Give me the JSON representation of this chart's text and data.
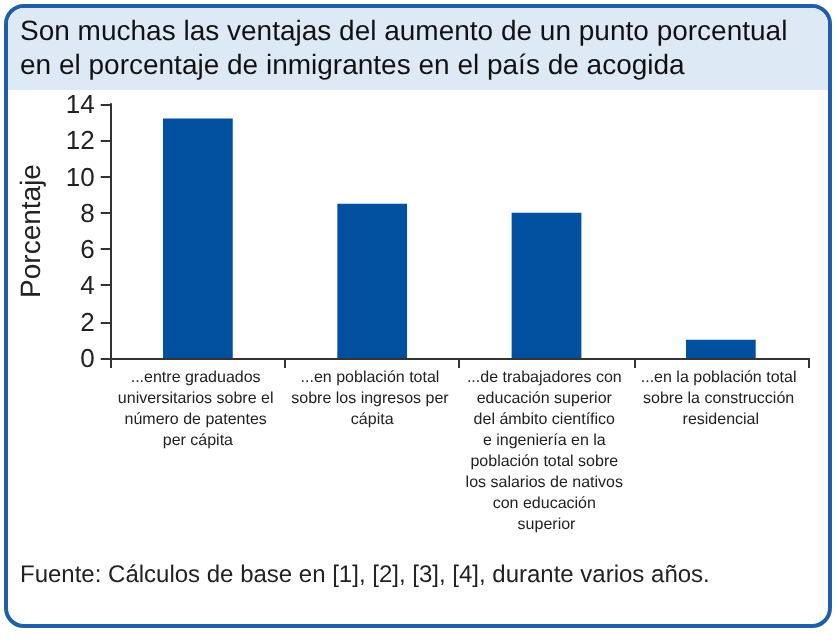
{
  "chart_data": {
    "type": "bar",
    "title": "Son muchas las ventajas del aumento de un punto porcentual en el porcentaje de inmigrantes en el país de acogida",
    "ylabel": "Porcentaje",
    "categories": [
      "...entre graduados universitarios sobre el número de patentes per cápita",
      "...en población total sobre los ingresos per cápita",
      "...de trabajadores con educación superior del ámbito científico e ingeniería en la población total sobre los salarios de nativos con educación superior",
      "...en la población total sobre la construcción residencial"
    ],
    "values": [
      13.2,
      8.5,
      8.0,
      1.0
    ],
    "color": "#0050a0",
    "ylim": [
      0,
      14
    ],
    "yticks": [
      0,
      2,
      4,
      6,
      8,
      10,
      12,
      14
    ],
    "grid": false,
    "annotations": [
      "Fuente: Cálculos de base en [1], [2], [3], [4], durante varios años."
    ]
  }
}
